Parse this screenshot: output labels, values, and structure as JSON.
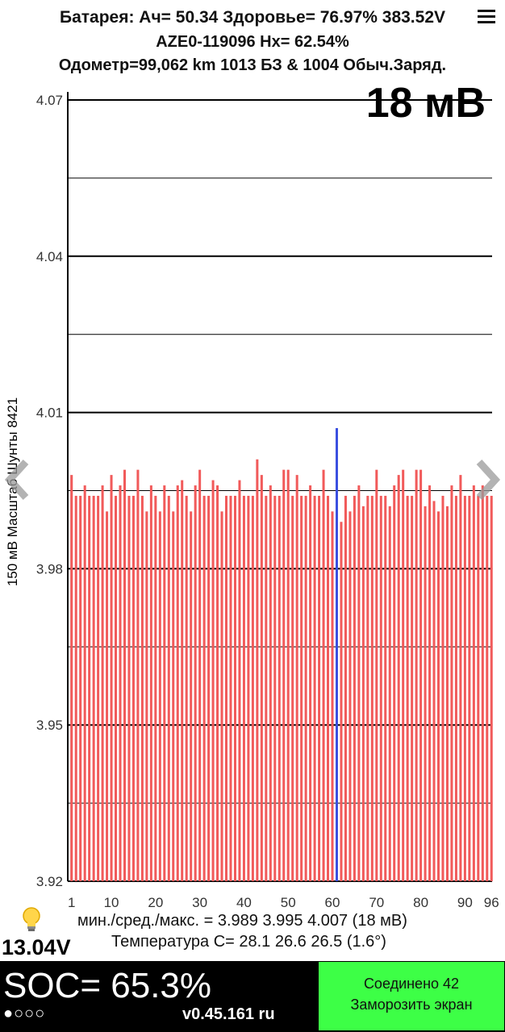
{
  "header": {
    "line1": "Батарея: Ач= 50.34 Здоровье= 76.97% 383.52V",
    "line2": "AZE0-119096   Hx= 62.54%",
    "line3": "Одометр=99,062 km 1013 БЗ & 1004 Обыч.Заряд."
  },
  "spread_label": "18 мВ",
  "y_axis_label": "150 мВ Масштаб  Шунты 8421",
  "stats": {
    "line1": "мин./сред./макс. = 3.989 3.995 4.007  (18 мВ)",
    "line2": "Температура C= 28.1   26.6   26.5  (1.6°)"
  },
  "aux_voltage": "13.04V",
  "soc_label": "SOC= 65.3%",
  "status_dots": "●○○○",
  "version": "v0.45.161 ru",
  "connect_button": {
    "line1": "Соединено 42",
    "line2": "Заморозить экран"
  },
  "colors": {
    "bar": "#f15a5a",
    "highlight_bar": "#3a4fe0",
    "connect_bg": "#3dff46",
    "bottom_bg": "#000000"
  },
  "icons": [
    "menu-icon",
    "chevron-left-icon",
    "chevron-right-icon",
    "lightbulb-icon"
  ],
  "chart_data": {
    "type": "bar",
    "title": "",
    "xlabel": "",
    "ylabel": "150 мВ Масштаб  Шунты 8421",
    "ylim": [
      3.92,
      4.07
    ],
    "y_ticks": [
      "4.07",
      "4.04",
      "4.01",
      "3.98",
      "3.95",
      "3.92"
    ],
    "x_tick_labels": [
      "1",
      "10",
      "20",
      "30",
      "40",
      "50",
      "60",
      "70",
      "80",
      "90",
      "96"
    ],
    "highlight_cell": 61,
    "x": [
      1,
      2,
      3,
      4,
      5,
      6,
      7,
      8,
      9,
      10,
      11,
      12,
      13,
      14,
      15,
      16,
      17,
      18,
      19,
      20,
      21,
      22,
      23,
      24,
      25,
      26,
      27,
      28,
      29,
      30,
      31,
      32,
      33,
      34,
      35,
      36,
      37,
      38,
      39,
      40,
      41,
      42,
      43,
      44,
      45,
      46,
      47,
      48,
      49,
      50,
      51,
      52,
      53,
      54,
      55,
      56,
      57,
      58,
      59,
      60,
      61,
      62,
      63,
      64,
      65,
      66,
      67,
      68,
      69,
      70,
      71,
      72,
      73,
      74,
      75,
      76,
      77,
      78,
      79,
      80,
      81,
      82,
      83,
      84,
      85,
      86,
      87,
      88,
      89,
      90,
      91,
      92,
      93,
      94,
      95,
      96
    ],
    "values": [
      3.998,
      3.994,
      3.994,
      3.996,
      3.994,
      3.994,
      3.994,
      3.996,
      3.991,
      3.998,
      3.994,
      3.996,
      3.999,
      3.994,
      3.994,
      3.999,
      3.994,
      3.991,
      3.996,
      3.994,
      3.991,
      3.996,
      3.994,
      3.991,
      3.996,
      3.997,
      3.994,
      3.991,
      3.996,
      3.999,
      3.994,
      3.994,
      3.997,
      3.996,
      3.991,
      3.994,
      3.994,
      3.994,
      3.997,
      3.994,
      3.994,
      3.994,
      4.001,
      3.998,
      3.994,
      3.996,
      3.994,
      3.994,
      3.999,
      3.999,
      3.994,
      3.998,
      3.994,
      3.994,
      3.996,
      3.994,
      3.994,
      3.999,
      3.994,
      3.991,
      4.007,
      3.989,
      3.994,
      3.991,
      3.994,
      3.996,
      3.992,
      3.994,
      3.994,
      3.999,
      3.994,
      3.994,
      3.992,
      3.996,
      3.998,
      3.999,
      3.994,
      3.994,
      3.999,
      3.999,
      3.992,
      3.996,
      3.993,
      3.991,
      3.994,
      3.992,
      3.996,
      3.994,
      3.998,
      3.994,
      3.994,
      3.996,
      3.994,
      3.996,
      3.994,
      3.994
    ]
  }
}
